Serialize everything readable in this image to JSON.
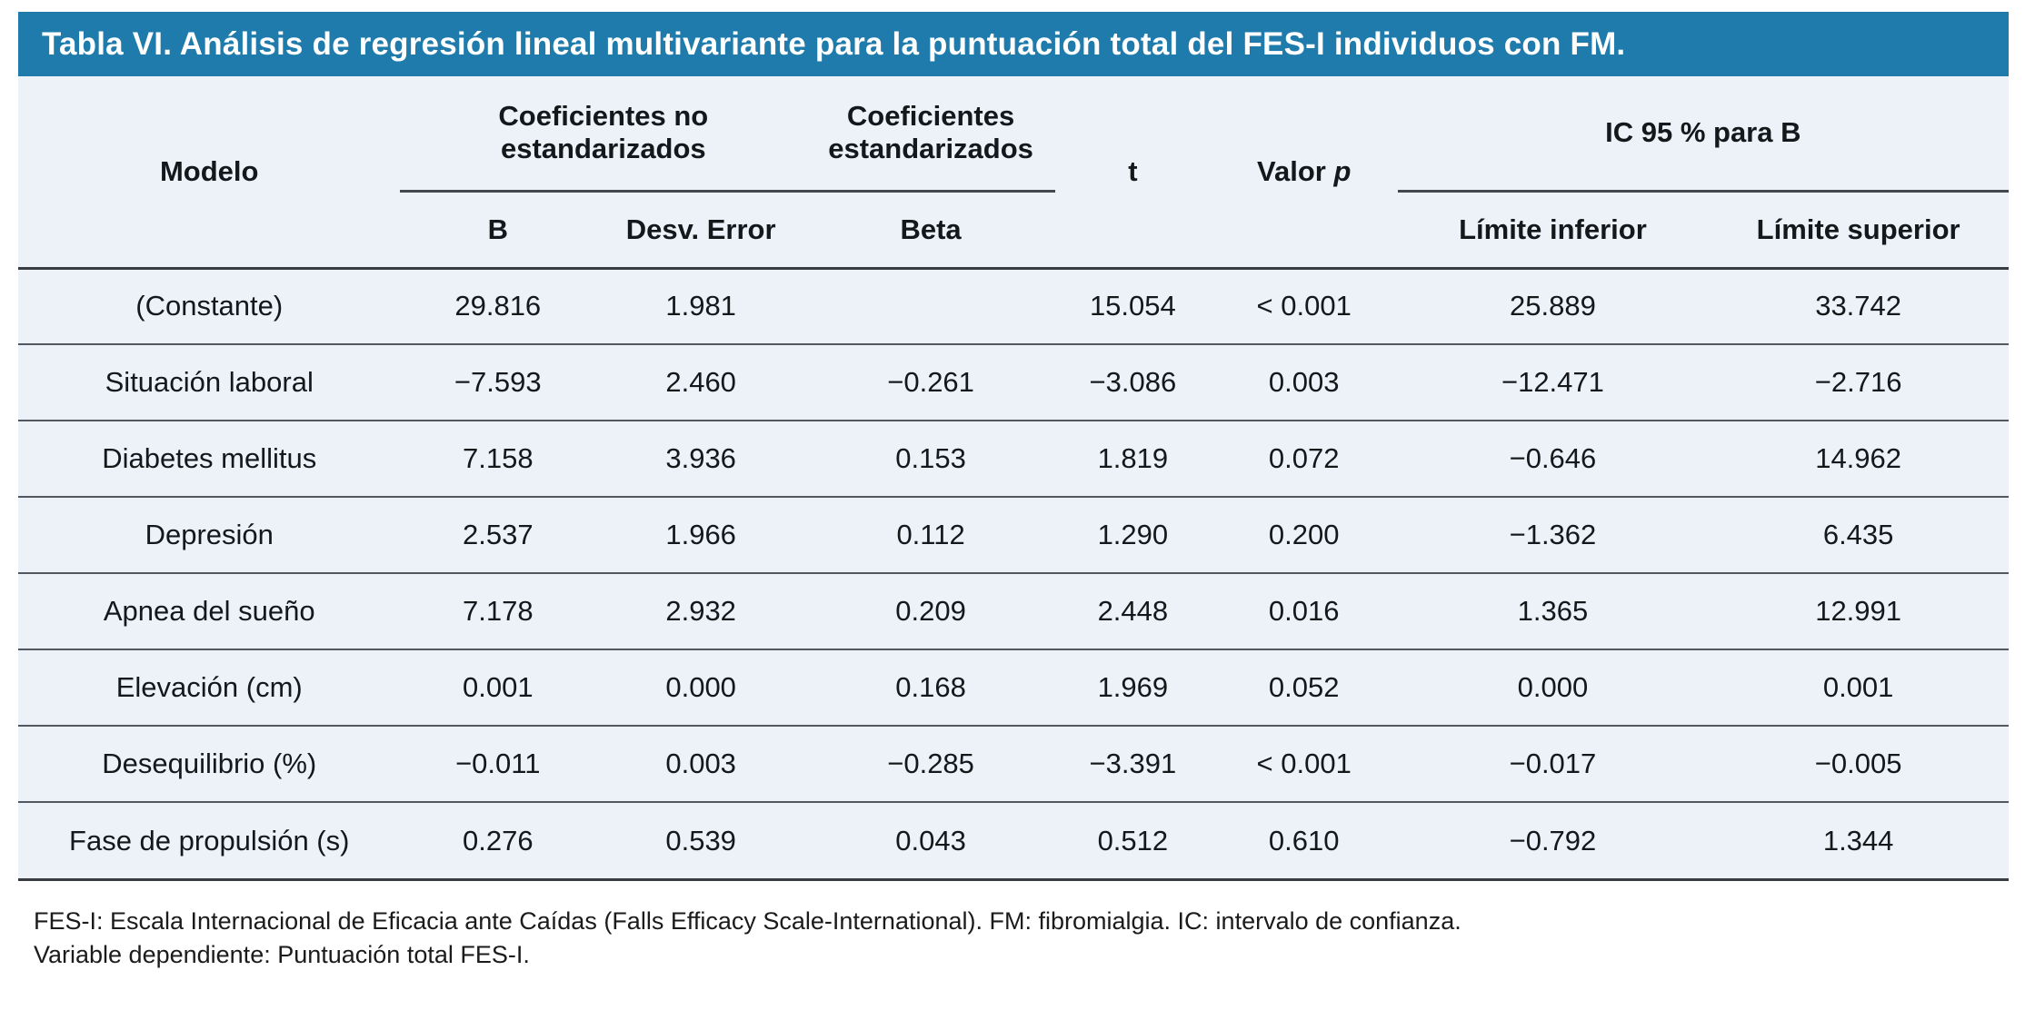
{
  "title": "Tabla VI. Análisis de regresión lineal multivariante para la puntuación total del FES-I individuos con FM.",
  "colors": {
    "title_bg": "#1f7bab",
    "title_text": "#ffffff",
    "table_bg": "#edf1f8",
    "rule_dark": "#383c40",
    "row_line": "#51585f"
  },
  "header": {
    "modelo": "Modelo",
    "group_no_std": "Coeficientes no estandarizados",
    "group_std": "Coeficientes estandarizados",
    "t": "t",
    "valor_p_prefix": "Valor ",
    "valor_p_italic": "p",
    "group_ic": "IC 95 % para B",
    "sub_b": "B",
    "sub_desv": "Desv. Error",
    "sub_beta": "Beta",
    "sub_li": "Límite inferior",
    "sub_ls": "Límite superior"
  },
  "rows": [
    {
      "modelo": "(Constante)",
      "b": "29.816",
      "desv": "1.981",
      "beta": "",
      "t": "15.054",
      "p": "< 0.001",
      "li": "25.889",
      "ls": "33.742"
    },
    {
      "modelo": "Situación laboral",
      "b": "−7.593",
      "desv": "2.460",
      "beta": "−0.261",
      "t": "−3.086",
      "p": "0.003",
      "li": "−12.471",
      "ls": "−2.716"
    },
    {
      "modelo": "Diabetes mellitus",
      "b": "7.158",
      "desv": "3.936",
      "beta": "0.153",
      "t": "1.819",
      "p": "0.072",
      "li": "−0.646",
      "ls": "14.962"
    },
    {
      "modelo": "Depresión",
      "b": "2.537",
      "desv": "1.966",
      "beta": "0.112",
      "t": "1.290",
      "p": "0.200",
      "li": "−1.362",
      "ls": "6.435"
    },
    {
      "modelo": "Apnea del sueño",
      "b": "7.178",
      "desv": "2.932",
      "beta": "0.209",
      "t": "2.448",
      "p": "0.016",
      "li": "1.365",
      "ls": "12.991"
    },
    {
      "modelo": "Elevación (cm)",
      "b": "0.001",
      "desv": "0.000",
      "beta": "0.168",
      "t": "1.969",
      "p": "0.052",
      "li": "0.000",
      "ls": "0.001"
    },
    {
      "modelo": "Desequilibrio (%)",
      "b": "−0.011",
      "desv": "0.003",
      "beta": "−0.285",
      "t": "−3.391",
      "p": "< 0.001",
      "li": "−0.017",
      "ls": "−0.005"
    },
    {
      "modelo": "Fase de propulsión (s)",
      "b": "0.276",
      "desv": "0.539",
      "beta": "0.043",
      "t": "0.512",
      "p": "0.610",
      "li": "−0.792",
      "ls": "1.344"
    }
  ],
  "footnotes": [
    "FES-I: Escala Internacional de Eficacia ante Caídas (Falls Efficacy Scale-International). FM: fibromialgia. IC: intervalo de confianza.",
    "Variable dependiente: Puntuación total FES-I."
  ],
  "chart_data": {
    "type": "table",
    "title": "Tabla VI. Análisis de regresión lineal multivariante para la puntuación total del FES-I individuos con FM.",
    "columns": [
      "Modelo",
      "B",
      "Desv. Error",
      "Beta",
      "t",
      "Valor p",
      "Límite inferior",
      "Límite superior"
    ],
    "rows": [
      [
        "(Constante)",
        29.816,
        1.981,
        null,
        15.054,
        "< 0.001",
        25.889,
        33.742
      ],
      [
        "Situación laboral",
        -7.593,
        2.46,
        -0.261,
        -3.086,
        0.003,
        -12.471,
        -2.716
      ],
      [
        "Diabetes mellitus",
        7.158,
        3.936,
        0.153,
        1.819,
        0.072,
        -0.646,
        14.962
      ],
      [
        "Depresión",
        2.537,
        1.966,
        0.112,
        1.29,
        0.2,
        -1.362,
        6.435
      ],
      [
        "Apnea del sueño",
        7.178,
        2.932,
        0.209,
        2.448,
        0.016,
        1.365,
        12.991
      ],
      [
        "Elevación (cm)",
        0.001,
        0.0,
        0.168,
        1.969,
        0.052,
        0.0,
        0.001
      ],
      [
        "Desequilibrio (%)",
        -0.011,
        0.003,
        -0.285,
        -3.391,
        "< 0.001",
        -0.017,
        -0.005
      ],
      [
        "Fase de propulsión (s)",
        0.276,
        0.539,
        0.043,
        0.512,
        0.61,
        -0.792,
        1.344
      ]
    ]
  }
}
